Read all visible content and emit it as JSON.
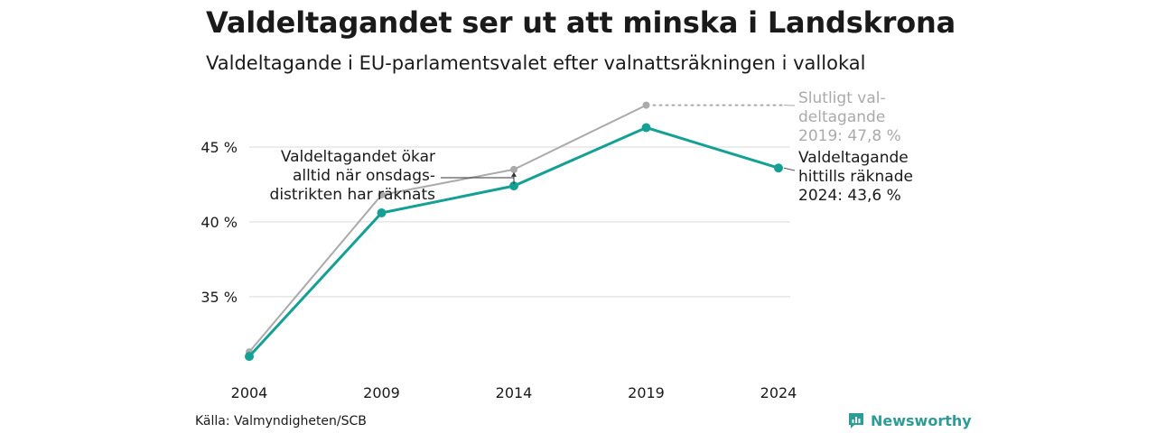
{
  "header": {
    "title": "Valdeltagandet ser ut att minska i Landskrona",
    "subtitle": "Valdeltagande i EU-parlamentsvalet efter valnattsräkningen i vallokal"
  },
  "footer": {
    "source": "Källa: Valmyndigheten/SCB",
    "logo_text": "Newsworthy"
  },
  "colors": {
    "preliminary": "#14a095",
    "final": "#aaaaaa",
    "grid": "#e6e6e6",
    "text": "#1a1a1a",
    "brand": "#2e9c96"
  },
  "icons": {
    "logo": "newsworthy-bar-chart-icon"
  },
  "chart_data": {
    "type": "line",
    "x": [
      2004,
      2009,
      2014,
      2019,
      2024
    ],
    "xticks": [
      "2004",
      "2009",
      "2014",
      "2019",
      "2024"
    ],
    "yticks": [
      35,
      40,
      45
    ],
    "ytick_labels": [
      "35 %",
      "40 %",
      "45 %"
    ],
    "ylim": [
      29.5,
      48.5
    ],
    "grid": "horizontal",
    "series": [
      {
        "values": [
          31.3,
          41.8,
          43.5,
          47.8,
          null
        ]
      },
      {
        "values": [
          31.0,
          40.6,
          42.4,
          46.3,
          43.6
        ]
      }
    ],
    "annotations": {
      "final_label": [
        "Slutligt val-",
        "deltagande",
        "2019: 47,8 %"
      ],
      "prelim_label": [
        "Valdeltagande",
        "hittills räknade",
        "2024: 43,6 %"
      ],
      "note": [
        "Valdeltagandet ökar",
        "alltid när onsdags-",
        "distrikten har räknats"
      ]
    }
  }
}
